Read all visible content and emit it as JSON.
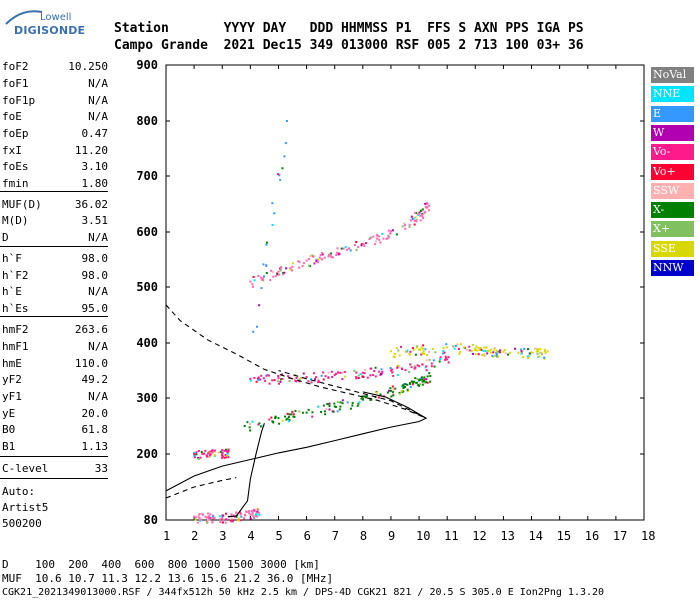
{
  "logo": {
    "line1": "Lowell",
    "line2": "DIGISONDE"
  },
  "header": {
    "row1": "Station       YYYY DAY   DDD HHMMSS P1  FFS S AXN PPS IGA PS",
    "row2": "Campo Grande  2021 Dec15 349 013000 RSF 005 2 713 100 03+ 36"
  },
  "params": [
    {
      "name": "foF2",
      "value": "10.250"
    },
    {
      "name": "foF1",
      "value": "N/A"
    },
    {
      "name": "foF1p",
      "value": "N/A"
    },
    {
      "name": "foE",
      "value": "N/A"
    },
    {
      "name": "foEp",
      "value": "0.47"
    },
    {
      "name": "fxI",
      "value": "11.20"
    },
    {
      "name": "foEs",
      "value": "3.10"
    },
    {
      "name": "fmin",
      "value": "1.80"
    },
    {
      "name": "MUF(D)",
      "value": "36.02"
    },
    {
      "name": "M(D)",
      "value": "3.51"
    },
    {
      "name": "D",
      "value": "N/A"
    },
    {
      "name": "h`F",
      "value": "98.0"
    },
    {
      "name": "h`F2",
      "value": "98.0"
    },
    {
      "name": "h`E",
      "value": "N/A"
    },
    {
      "name": "h`Es",
      "value": "95.0"
    },
    {
      "name": "hmF2",
      "value": "263.6"
    },
    {
      "name": "hmF1",
      "value": "N/A"
    },
    {
      "name": "hmE",
      "value": "110.0"
    },
    {
      "name": "yF2",
      "value": "49.2"
    },
    {
      "name": "yF1",
      "value": "N/A"
    },
    {
      "name": "yE",
      "value": "20.0"
    },
    {
      "name": "B0",
      "value": "61.8"
    },
    {
      "name": "B1",
      "value": "1.13"
    },
    {
      "name": "C-level",
      "value": "33"
    }
  ],
  "auto": {
    "l1": "Auto:",
    "l2": "Artist5",
    "l3": "500200"
  },
  "legend": [
    {
      "label": "NoVal",
      "color": "#808080"
    },
    {
      "label": "NNE",
      "color": "#00e5ff"
    },
    {
      "label": "E",
      "color": "#3399ff"
    },
    {
      "label": "W",
      "color": "#b000b0"
    },
    {
      "label": "Vo-",
      "color": "#ff1a8c"
    },
    {
      "label": "Vo+",
      "color": "#ff0033"
    },
    {
      "label": "SSW",
      "color": "#ffb0b0"
    },
    {
      "label": "X-",
      "color": "#008000"
    },
    {
      "label": "X+",
      "color": "#80c060"
    },
    {
      "label": "SSE",
      "color": "#d8d800"
    },
    {
      "label": "NNW",
      "color": "#0000cc"
    }
  ],
  "footer": {
    "row1": "D    100  200  400  600  800 1000 1500 3000 [km]",
    "row2": "MUF  10.6 10.7 11.3 12.2 13.6 15.6 21.2 36.0 [MHz]",
    "row3": "CGK21_2021349013000.RSF / 344fx512h 50 kHz 2.5 km / DPS-4D CGK21 821 / 20.5 S 305.0 E Ion2Png 1.3.20"
  },
  "chart_data": {
    "type": "scatter",
    "xlim": [
      1,
      18
    ],
    "ylim": [
      80,
      900
    ],
    "x_ticks": [
      1,
      2,
      3,
      4,
      5,
      6,
      7,
      8,
      9,
      10,
      11,
      12,
      13,
      14,
      15,
      16,
      17,
      18
    ],
    "y_ticks": [
      80,
      200,
      300,
      400,
      500,
      600,
      700,
      800,
      900
    ],
    "series": [
      {
        "type": "point-cloud",
        "color": "#ff66b3",
        "points": [
          [
            2.0,
            86
          ],
          [
            2.5,
            85
          ],
          [
            3.0,
            84
          ],
          [
            3.5,
            88
          ],
          [
            4.0,
            90
          ],
          [
            4.3,
            93
          ]
        ]
      },
      {
        "type": "point-cloud",
        "color": "#ff1a8c",
        "points": [
          [
            2.0,
            200
          ],
          [
            2.5,
            201
          ],
          [
            3.0,
            202
          ],
          [
            3.2,
            203
          ]
        ]
      },
      {
        "type": "point-cloud",
        "color": "#008000",
        "points": [
          [
            3.8,
            250
          ],
          [
            5.0,
            264
          ],
          [
            6.0,
            274
          ],
          [
            7.0,
            285
          ],
          [
            8.0,
            298
          ],
          [
            9.0,
            313
          ],
          [
            9.5,
            320
          ],
          [
            10.0,
            332
          ],
          [
            10.4,
            340
          ]
        ]
      },
      {
        "type": "point-cloud",
        "color": "#ff1a8c",
        "points": [
          [
            4.0,
            335
          ],
          [
            5.0,
            336
          ],
          [
            6.0,
            338
          ],
          [
            7.0,
            342
          ],
          [
            8.0,
            346
          ],
          [
            9.0,
            350
          ],
          [
            10.0,
            358
          ],
          [
            11.0,
            370
          ]
        ]
      },
      {
        "type": "point-cloud",
        "color": "#d8d800",
        "points": [
          [
            9.0,
            385
          ],
          [
            10.0,
            388
          ],
          [
            11.0,
            392
          ],
          [
            12.0,
            390
          ],
          [
            12.5,
            386
          ],
          [
            13.0,
            384
          ],
          [
            14.0,
            383
          ],
          [
            14.5,
            382
          ]
        ]
      },
      {
        "type": "point-cloud",
        "color": "#ff66b3",
        "points": [
          [
            4.0,
            510
          ],
          [
            5.0,
            528
          ],
          [
            6.0,
            548
          ],
          [
            6.5,
            558
          ],
          [
            7.5,
            570
          ],
          [
            8.5,
            588
          ],
          [
            9.5,
            612
          ],
          [
            10.0,
            632
          ],
          [
            10.3,
            650
          ]
        ]
      },
      {
        "type": "point-cloud",
        "color": "#3399ff",
        "points": [
          [
            4.1,
            420
          ],
          [
            5.3,
            800
          ]
        ]
      }
    ],
    "lines": [
      {
        "name": "",
        "style": "solid",
        "points": [
          [
            1.0,
            133
          ],
          [
            2.0,
            160
          ],
          [
            3.0,
            178
          ],
          [
            4.0,
            190
          ],
          [
            5.0,
            202
          ],
          [
            6.0,
            212
          ],
          [
            7.0,
            224
          ],
          [
            8.0,
            236
          ],
          [
            9.0,
            248
          ],
          [
            10.0,
            258
          ],
          [
            10.25,
            264
          ],
          [
            9.6,
            283
          ],
          [
            8.8,
            302
          ],
          [
            8.0,
            311
          ]
        ]
      },
      {
        "name": "",
        "style": "solid",
        "points": [
          [
            3.2,
            86
          ],
          [
            3.5,
            87
          ],
          [
            3.9,
            115
          ],
          [
            4.0,
            155
          ],
          [
            4.2,
            200
          ],
          [
            4.4,
            240
          ],
          [
            4.5,
            255
          ]
        ]
      },
      {
        "name": "",
        "style": "dashed",
        "points": [
          [
            1.0,
            468
          ],
          [
            1.5,
            440
          ],
          [
            2.5,
            405
          ],
          [
            3.5,
            380
          ],
          [
            4.5,
            352
          ],
          [
            5.5,
            335
          ],
          [
            6.5,
            320
          ],
          [
            7.5,
            308
          ],
          [
            8.5,
            296
          ],
          [
            9.5,
            280
          ],
          [
            10.25,
            264
          ],
          [
            9.0,
            295
          ],
          [
            7.5,
            315
          ],
          [
            6.0,
            335
          ],
          [
            5.0,
            350
          ]
        ]
      },
      {
        "name": "",
        "style": "dashed",
        "points": [
          [
            1.0,
            120
          ],
          [
            2.0,
            140
          ],
          [
            3.0,
            152
          ],
          [
            3.5,
            157
          ]
        ]
      }
    ]
  }
}
